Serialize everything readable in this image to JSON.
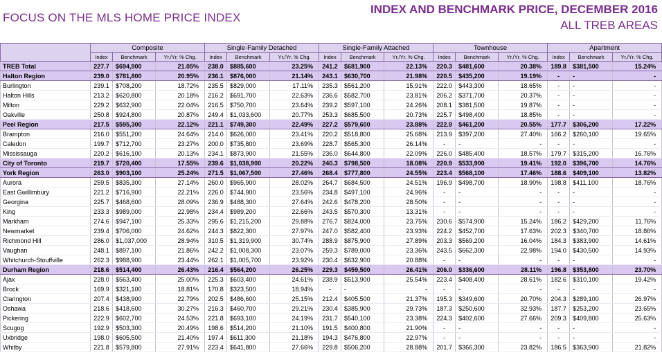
{
  "header": {
    "left": "FOCUS ON THE MLS HOME PRICE INDEX",
    "title": "INDEX AND BENCHMARK PRICE, DECEMBER 2016",
    "subtitle": "ALL TREB AREAS"
  },
  "table": {
    "groups": [
      {
        "name": "Composite",
        "columns": [
          "Index",
          "Benchmark",
          "Yr./Yr. % Chg."
        ]
      },
      {
        "name": "Single-Family Detached",
        "columns": [
          "Index",
          "Benchmark",
          "Yr./Yr. % Chg."
        ]
      },
      {
        "name": "Single-Family Attached",
        "columns": [
          "Index",
          "Benchmark",
          "Yr./Yr. % Chg."
        ]
      },
      {
        "name": "Townhouse",
        "columns": [
          "Index",
          "Benchmark",
          "Yr./Yr. % Chg."
        ]
      },
      {
        "name": "Apartment",
        "columns": [
          "Index",
          "Benchmark",
          "Yr./Yr. % Chg."
        ]
      }
    ],
    "rows": [
      {
        "label": "TREB Total",
        "highlight": true,
        "cells": [
          "227.7",
          "$694,900",
          "21.05%",
          "238.0",
          "$885,600",
          "23.25%",
          "241.2",
          "$681,900",
          "22.13%",
          "220.3",
          "$481,600",
          "20.38%",
          "189.8",
          "$381,500",
          "15.24%"
        ]
      },
      {
        "label": "Halton Region",
        "highlight": true,
        "cells": [
          "239.0",
          "$781,800",
          "20.95%",
          "236.1",
          "$876,000",
          "21.14%",
          "243.1",
          "$630,700",
          "21.98%",
          "220.5",
          "$435,200",
          "19.19%",
          "-",
          "-",
          "-"
        ]
      },
      {
        "label": "Burlington",
        "cells": [
          "239.1",
          "$708,200",
          "18.72%",
          "235.5",
          "$829,000",
          "17.11%",
          "235.3",
          "$561,200",
          "15.91%",
          "222.0",
          "$443,300",
          "18.65%",
          "-",
          "-",
          "-"
        ]
      },
      {
        "label": "Halton Hills",
        "cells": [
          "213.2",
          "$620,800",
          "20.18%",
          "216.2",
          "$691,700",
          "22.63%",
          "236.6",
          "$582,700",
          "23.81%",
          "206.2",
          "$371,700",
          "20.37%",
          "-",
          "-",
          "-"
        ]
      },
      {
        "label": "Milton",
        "cells": [
          "229.2",
          "$632,900",
          "22.04%",
          "216.5",
          "$750,700",
          "23.64%",
          "239.2",
          "$597,100",
          "24.26%",
          "208.1",
          "$381,500",
          "19.87%",
          "-",
          "-",
          "-"
        ]
      },
      {
        "label": "Oakville",
        "cells": [
          "250.8",
          "$924,800",
          "20.87%",
          "249.4",
          "$1,033,600",
          "20.77%",
          "253.3",
          "$685,500",
          "20.73%",
          "225.7",
          "$498,400",
          "18.85%",
          "-",
          "-",
          "-"
        ]
      },
      {
        "label": "Peel Region",
        "highlight": true,
        "cells": [
          "217.5",
          "$595,300",
          "22.12%",
          "221.1",
          "$749,300",
          "22.49%",
          "227.2",
          "$579,600",
          "23.88%",
          "222.9",
          "$461,200",
          "20.55%",
          "177.7",
          "$306,200",
          "17.22%"
        ]
      },
      {
        "label": "Brampton",
        "cells": [
          "216.0",
          "$551,200",
          "24.64%",
          "214.0",
          "$626,000",
          "23.41%",
          "220.2",
          "$518,800",
          "25.68%",
          "213.9",
          "$397,200",
          "27.40%",
          "166.2",
          "$260,100",
          "19.65%"
        ]
      },
      {
        "label": "Caledon",
        "cells": [
          "199.7",
          "$712,700",
          "23.27%",
          "200.0",
          "$735,800",
          "23.69%",
          "228.7",
          "$565,300",
          "26.14%",
          "-",
          "-",
          "-",
          "-",
          "-",
          "-"
        ]
      },
      {
        "label": "Mississauga",
        "cells": [
          "220.2",
          "$616,100",
          "20.13%",
          "234.1",
          "$873,900",
          "21.55%",
          "236.0",
          "$644,800",
          "22.09%",
          "226.0",
          "$485,400",
          "18.57%",
          "179.7",
          "$315,200",
          "16.76%"
        ]
      },
      {
        "label": "City of Toronto",
        "highlight": true,
        "cells": [
          "219.7",
          "$720,400",
          "17.55%",
          "239.6",
          "$1,038,900",
          "20.22%",
          "240.3",
          "$798,500",
          "18.08%",
          "220.9",
          "$533,900",
          "19.41%",
          "192.0",
          "$396,700",
          "14.76%"
        ]
      },
      {
        "label": "York Region",
        "highlight": true,
        "cells": [
          "263.0",
          "$903,100",
          "25.24%",
          "271.5",
          "$1,067,500",
          "27.46%",
          "268.4",
          "$777,800",
          "24.55%",
          "223.4",
          "$568,100",
          "17.46%",
          "188.6",
          "$409,100",
          "13.82%"
        ]
      },
      {
        "label": "Aurora",
        "cells": [
          "259.5",
          "$835,300",
          "27.14%",
          "260.0",
          "$965,900",
          "28.02%",
          "264.7",
          "$684,500",
          "24.51%",
          "196.9",
          "$498,700",
          "18.90%",
          "198.8",
          "$411,100",
          "18.76%"
        ]
      },
      {
        "label": "East Gwillimbury",
        "cells": [
          "221.2",
          "$716,900",
          "22.21%",
          "226.0",
          "$744,900",
          "23.56%",
          "234.8",
          "$497,100",
          "24.96%",
          "-",
          "-",
          "-",
          "-",
          "-",
          "-"
        ]
      },
      {
        "label": "Georgina",
        "cells": [
          "225.7",
          "$468,600",
          "28.09%",
          "236.9",
          "$488,300",
          "27.64%",
          "242.6",
          "$478,200",
          "28.50%",
          "-",
          "-",
          "-",
          "-",
          "-",
          "-"
        ]
      },
      {
        "label": "King",
        "cells": [
          "233.3",
          "$989,000",
          "22.98%",
          "234.4",
          "$989,200",
          "22.66%",
          "243.5",
          "$570,300",
          "13.31%",
          "-",
          "-",
          "-",
          "-",
          "-",
          "-"
        ]
      },
      {
        "label": "Markham",
        "cells": [
          "274.6",
          "$947,100",
          "25.33%",
          "295.6",
          "$1,215,200",
          "29.88%",
          "276.7",
          "$824,000",
          "23.75%",
          "230.6",
          "$574,900",
          "15.24%",
          "186.2",
          "$429,200",
          "11.76%"
        ]
      },
      {
        "label": "Newmarket",
        "cells": [
          "239.4",
          "$706,000",
          "24.62%",
          "244.3",
          "$822,300",
          "27.97%",
          "247.0",
          "$582,400",
          "23.93%",
          "224.2",
          "$452,700",
          "17.63%",
          "202.3",
          "$340,700",
          "18.86%"
        ]
      },
      {
        "label": "Richmond Hill",
        "cells": [
          "286.0",
          "$1,037,000",
          "28.94%",
          "310.5",
          "$1,319,900",
          "30.74%",
          "288.9",
          "$875,900",
          "27.89%",
          "203.3",
          "$569,200",
          "16.04%",
          "184.3",
          "$383,900",
          "14.61%"
        ]
      },
      {
        "label": "Vaughan",
        "cells": [
          "248.1",
          "$897,100",
          "21.86%",
          "242.2",
          "$1,008,300",
          "23.07%",
          "259.3",
          "$789,000",
          "23.36%",
          "243.5",
          "$662,300",
          "22.98%",
          "194.0",
          "$430,500",
          "14.93%"
        ]
      },
      {
        "label": "Whitchurch-Stouffville",
        "cells": [
          "262.3",
          "$988,900",
          "23.44%",
          "262.1",
          "$1,005,700",
          "23.92%",
          "230.4",
          "$632,900",
          "20.88%",
          "-",
          "-",
          "-",
          "-",
          "-",
          "-"
        ]
      },
      {
        "label": "Durham Region",
        "highlight": true,
        "cells": [
          "218.6",
          "$514,400",
          "26.43%",
          "216.4",
          "$564,200",
          "26.25%",
          "229.3",
          "$459,500",
          "26.41%",
          "206.0",
          "$336,600",
          "28.11%",
          "196.8",
          "$353,800",
          "23.70%"
        ]
      },
      {
        "label": "Ajax",
        "cells": [
          "228.0",
          "$563,400",
          "25.00%",
          "225.3",
          "$603,400",
          "24.61%",
          "238.9",
          "$513,900",
          "25.54%",
          "223.4",
          "$408,400",
          "28.61%",
          "182.6",
          "$310,100",
          "19.42%"
        ]
      },
      {
        "label": "Brock",
        "cells": [
          "169.9",
          "$321,100",
          "18.81%",
          "170.8",
          "$323,500",
          "18.94%",
          "-",
          "-",
          "-",
          "-",
          "-",
          "-",
          "-",
          "-",
          "-"
        ]
      },
      {
        "label": "Clarington",
        "cells": [
          "207.4",
          "$438,900",
          "22.79%",
          "202.5",
          "$486,600",
          "25.15%",
          "212.4",
          "$405,500",
          "21.37%",
          "195.3",
          "$349,600",
          "20.70%",
          "204.3",
          "$289,100",
          "26.97%"
        ]
      },
      {
        "label": "Oshawa",
        "cells": [
          "218.6",
          "$418,600",
          "30.27%",
          "216.3",
          "$460,700",
          "29.21%",
          "230.4",
          "$385,900",
          "29.73%",
          "187.3",
          "$250,600",
          "32.93%",
          "187.7",
          "$253,200",
          "23.65%"
        ]
      },
      {
        "label": "Pickering",
        "cells": [
          "222.9",
          "$602,700",
          "24.53%",
          "221.8",
          "$693,100",
          "24.19%",
          "231.7",
          "$540,100",
          "23.38%",
          "224.3",
          "$402,600",
          "27.66%",
          "209.3",
          "$409,800",
          "25.63%"
        ]
      },
      {
        "label": "Scugog",
        "cells": [
          "192.9",
          "$503,300",
          "20.49%",
          "198.6",
          "$514,200",
          "21.10%",
          "191.5",
          "$400,800",
          "21.90%",
          "-",
          "-",
          "-",
          "-",
          "-",
          "-"
        ]
      },
      {
        "label": "Uxbridge",
        "cells": [
          "198.0",
          "$605,500",
          "21.40%",
          "197.4",
          "$611,300",
          "21.18%",
          "194.3",
          "$476,800",
          "22.97%",
          "-",
          "-",
          "-",
          "-",
          "-",
          "-"
        ]
      },
      {
        "label": "Whitby",
        "cells": [
          "221.8",
          "$579,800",
          "27.91%",
          "223.4",
          "$641,800",
          "27.66%",
          "229.8",
          "$506,200",
          "28.88%",
          "201.7",
          "$366,300",
          "23.82%",
          "186.5",
          "$363,900",
          "21.82%"
        ]
      }
    ]
  }
}
